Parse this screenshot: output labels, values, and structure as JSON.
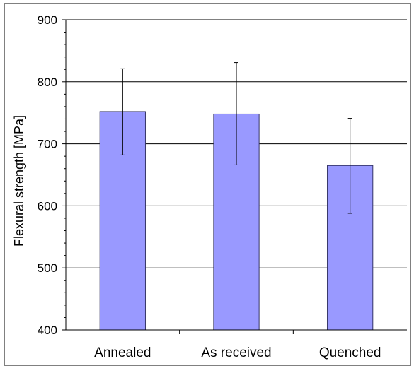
{
  "chart_data": {
    "type": "bar",
    "title": "",
    "xlabel": "",
    "ylabel": "Flexural strength [MPa]",
    "categories": [
      "Annealed",
      "As received",
      "Quenched"
    ],
    "values": [
      752,
      748,
      665
    ],
    "error_bars": [
      {
        "low": 682,
        "high": 821
      },
      {
        "low": 666,
        "high": 831
      },
      {
        "low": 588,
        "high": 741
      }
    ],
    "ylim": [
      400,
      900
    ],
    "yticks": [
      400,
      500,
      600,
      700,
      800,
      900
    ],
    "grid": "horizontal major gridlines",
    "legend": "none",
    "colors": {
      "bar_fill": "#9999ff",
      "bar_stroke": "#333366",
      "grid": "#000000",
      "axis": "#000000"
    }
  }
}
